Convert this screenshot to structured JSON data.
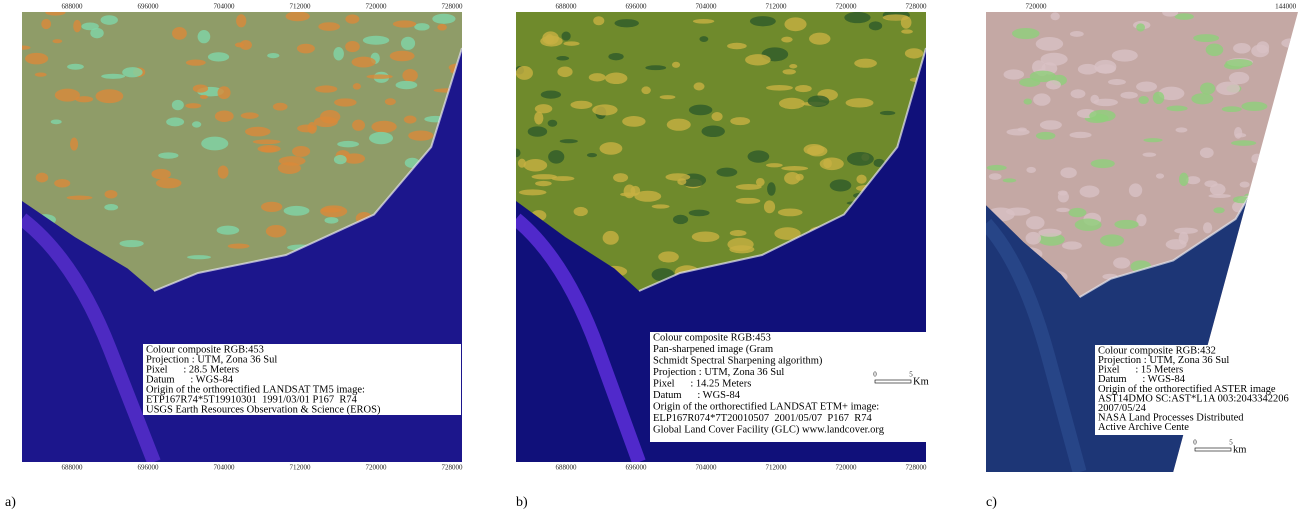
{
  "panels": [
    {
      "label": "a)",
      "ticks": [
        "688000",
        "696000",
        "704000",
        "712000",
        "720000",
        "728000"
      ],
      "legend": [
        "Colour composite RGB:453",
        "Projection : UTM, Zona 36 Sul",
        "Pixel      : 28.5 Meters",
        "Datum      : WGS-84",
        "Origin of the orthorectified LANDSAT TM5 image:",
        "ETP167R74*5T19910301  1991/03/01 P167  R74",
        "USGS Earth Resources Observation & Science (EROS)"
      ]
    },
    {
      "label": "b)",
      "ticks": [
        "688000",
        "696000",
        "704000",
        "712000",
        "720000",
        "728000"
      ],
      "legend": [
        "Colour composite RGB:453",
        "Pan-sharpened image (Gram",
        "Schmidt Spectral Sharpening algorithm)",
        "Projection : UTM, Zona 36 Sul",
        "Pixel      : 14.25 Meters",
        "Datum      : WGS-84",
        "Origin of the orthorectified LANDSAT ETM+ image:",
        "ELP167R074*7T20010507  2001/05/07  P167  R74",
        "Global Land Cover Facility (GLC) www.landcover.org"
      ],
      "scale": {
        "start": "0",
        "end": "5",
        "unit": "Km"
      }
    },
    {
      "label": "c)",
      "ticks": [
        "720000",
        "144000"
      ],
      "legend": [
        "Colour composite RGB:432",
        "Projection : UTM, Zona 36 Sul",
        "Pixel      : 15 Meters",
        "Datum      : WGS-84",
        "Origin of the orthorectified ASTER image",
        "AST14DMO SC:AST*L1A 003:2043342206",
        "2007/05/24",
        "NASA Land Processes Distributed",
        "Active Archive Cente"
      ],
      "scale": {
        "start": "0",
        "end": "5",
        "unit": "km"
      }
    }
  ]
}
